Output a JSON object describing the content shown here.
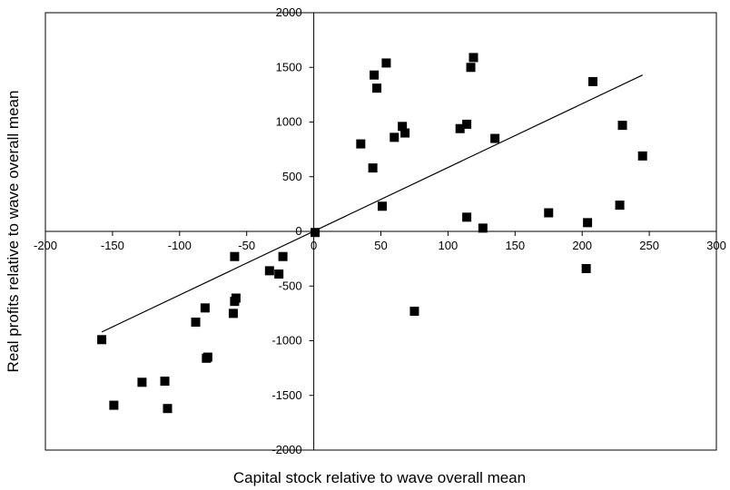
{
  "chart_data": {
    "type": "scatter",
    "title": "",
    "xlabel": "Capital stock relative to wave overall mean",
    "ylabel": "Real profits relative to wave overall mean",
    "xlim": [
      -200,
      300
    ],
    "ylim": [
      -2000,
      2000
    ],
    "x_ticks": [
      -200,
      -150,
      -100,
      -50,
      0,
      50,
      100,
      150,
      200,
      250,
      300
    ],
    "y_ticks": [
      -2000,
      -1500,
      -1000,
      -500,
      0,
      500,
      1000,
      1500,
      2000
    ],
    "x_tick_labels": [
      "-200",
      "-150",
      "-100",
      "-50",
      "0",
      "50",
      "100",
      "150",
      "200",
      "250",
      "300"
    ],
    "y_tick_labels": [
      "-2000",
      "-1500",
      "-1000",
      "-500",
      "0",
      "500",
      "1000",
      "1500",
      "2000"
    ],
    "grid": false,
    "legend": "none",
    "marker": "square",
    "marker_color": "#000000",
    "series": [
      {
        "points": [
          [
            -158,
            -990
          ],
          [
            -149,
            -1590
          ],
          [
            -128,
            -1380
          ],
          [
            -111,
            -1370
          ],
          [
            -109,
            -1620
          ],
          [
            -88,
            -830
          ],
          [
            -81,
            -700
          ],
          [
            -80,
            -1160
          ],
          [
            -79,
            -1150
          ],
          [
            -60,
            -750
          ],
          [
            -59,
            -640
          ],
          [
            -59,
            -230
          ],
          [
            -58,
            -610
          ],
          [
            -33,
            -360
          ],
          [
            -26,
            -390
          ],
          [
            -23,
            -230
          ],
          [
            1,
            -10
          ],
          [
            35,
            800
          ],
          [
            44,
            580
          ],
          [
            45,
            1430
          ],
          [
            47,
            1310
          ],
          [
            51,
            230
          ],
          [
            54,
            1540
          ],
          [
            60,
            860
          ],
          [
            66,
            960
          ],
          [
            68,
            900
          ],
          [
            75,
            -730
          ],
          [
            109,
            940
          ],
          [
            114,
            980
          ],
          [
            114,
            130
          ],
          [
            117,
            1500
          ],
          [
            119,
            1590
          ],
          [
            126,
            30
          ],
          [
            135,
            850
          ],
          [
            175,
            170
          ],
          [
            203,
            -340
          ],
          [
            204,
            80
          ],
          [
            208,
            1370
          ],
          [
            228,
            240
          ],
          [
            230,
            970
          ],
          [
            245,
            690
          ]
        ]
      }
    ],
    "trendline": {
      "x": [
        -158,
        245
      ],
      "y": [
        -920,
        1430
      ]
    }
  }
}
